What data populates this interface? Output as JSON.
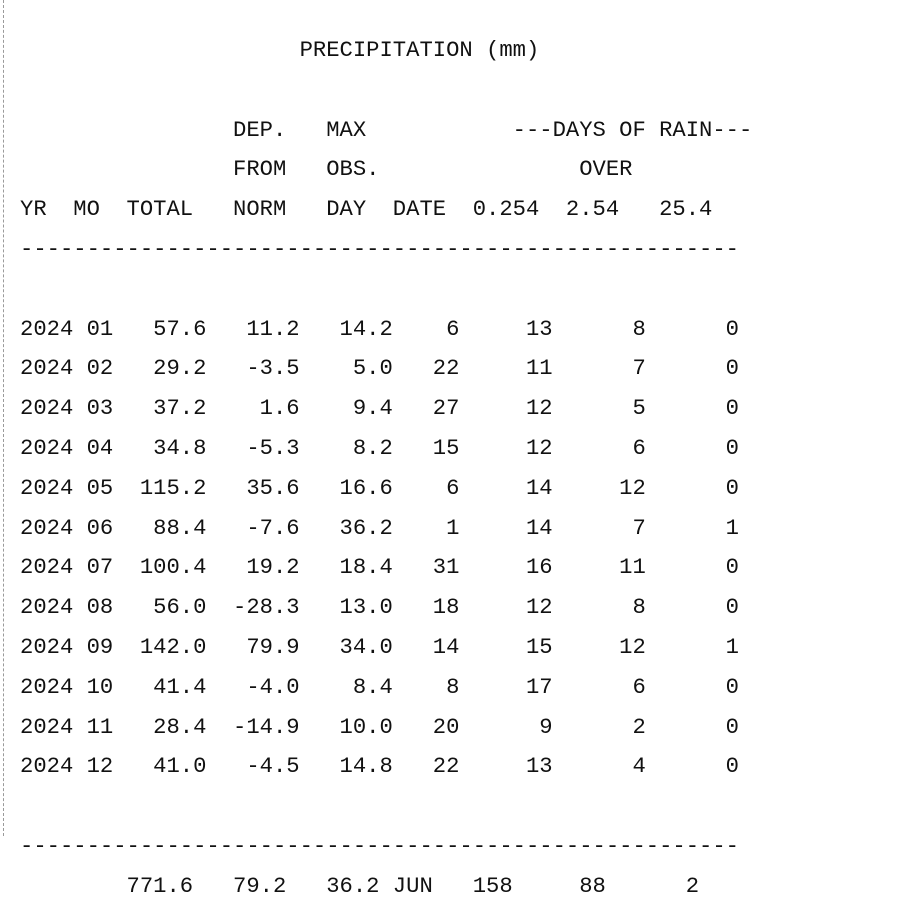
{
  "report": {
    "title_line": "                     PRECIPITATION (mm)",
    "blank_line": "",
    "header_line_1": "                DEP.   MAX           ---DAYS OF RAIN---",
    "header_line_2": "                FROM   OBS.               OVER",
    "header_line_3": "YR  MO  TOTAL   NORM   DAY  DATE  0.254  2.54   25.4",
    "separator": "------------------------------------------------------",
    "rows": [
      "2024 01   57.6   11.2   14.2    6     13      8      0",
      "2024 02   29.2   -3.5    5.0   22     11      7      0",
      "2024 03   37.2    1.6    9.4   27     12      5      0",
      "2024 04   34.8   -5.3    8.2   15     12      6      0",
      "2024 05  115.2   35.6   16.6    6     14     12      0",
      "2024 06   88.4   -7.6   36.2    1     14      7      1",
      "2024 07  100.4   19.2   18.4   31     16     11      0",
      "2024 08   56.0  -28.3   13.0   18     12      8      0",
      "2024 09  142.0   79.9   34.0   14     15     12      1",
      "2024 10   41.4   -4.0    8.4    8     17      6      0",
      "2024 11   28.4  -14.9   10.0   20      9      2      0",
      "2024 12   41.0   -4.5   14.8   22     13      4      0"
    ],
    "total_line": "        771.6   79.2   36.2 JUN   158     88      2"
  }
}
